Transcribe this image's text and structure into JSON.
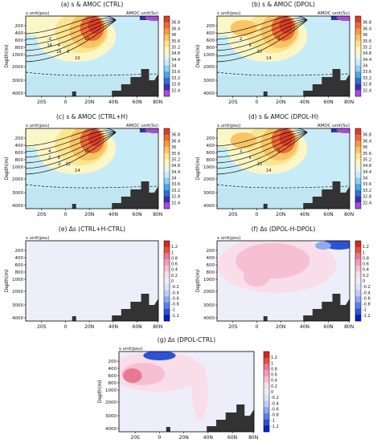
{
  "colors": {
    "salinity_scale": [
      "#a24fd6",
      "#3b2fb3",
      "#2f6fd0",
      "#4aa8e6",
      "#8fd0f0",
      "#c7ecf7",
      "#eef7e5",
      "#fbf6c6",
      "#fde58f",
      "#fbc464",
      "#f59a43",
      "#ed6a33",
      "#dc3c26"
    ],
    "anomaly_scale": [
      "#0c1cbf",
      "#2c52d6",
      "#5a82e6",
      "#8eaaf0",
      "#bfcdf6",
      "#dde3f8",
      "#eeeefa",
      "#f9dde8",
      "#f6bfd2",
      "#f19db8",
      "#ea7893",
      "#e2533b",
      "#d12a1c"
    ],
    "land": "#333333",
    "contour": "#111111"
  },
  "chart_data": [
    {
      "type": "contour",
      "panel_title": "(a) s & AMOC (CTRL)",
      "left_label": "s unit(psu)",
      "right_label": "AMOC unit(Sv)",
      "ylabel": "Depth(m)",
      "x_ticks": [
        "20S",
        "0",
        "20N",
        "40N",
        "60N",
        "80N"
      ],
      "y_ticks": [
        "200",
        "400",
        "600",
        "800",
        "1000",
        "2000",
        "3000",
        "4000"
      ],
      "colorbar_ticks": [
        "36.8",
        "36.4",
        "36",
        "35.6",
        "35.2",
        "34.8",
        "34.4",
        "34",
        "33.6",
        "33.2",
        "32.8",
        "32.4"
      ],
      "contour_labels": [
        "-2",
        "4",
        "8",
        "10",
        "12",
        "14",
        "16"
      ]
    },
    {
      "type": "contour",
      "panel_title": "(b) s & AMOC (DPOL)",
      "left_label": "s unit(psu)",
      "right_label": "AMOC unit(Sv)",
      "ylabel": "Depth(m)",
      "x_ticks": [
        "20S",
        "0",
        "20N",
        "40N",
        "60N",
        "80N"
      ],
      "y_ticks": [
        "200",
        "400",
        "600",
        "800",
        "1000",
        "2000",
        "3000",
        "4000"
      ],
      "colorbar_ticks": [
        "36.8",
        "36.4",
        "36",
        "35.6",
        "35.2",
        "34.8",
        "34.4",
        "34",
        "33.6",
        "33.2",
        "32.8",
        "32.4"
      ],
      "contour_labels": [
        "2",
        "6",
        "10",
        "14",
        "-2"
      ]
    },
    {
      "type": "contour",
      "panel_title": "(c) s & AMOC (CTRL+H)",
      "left_label": "s unit(psu)",
      "right_label": "AMOC unit(Sv)",
      "ylabel": "Depth(m)",
      "x_ticks": [
        "20S",
        "0",
        "20N",
        "40N",
        "60N",
        "80N"
      ],
      "y_ticks": [
        "200",
        "400",
        "600",
        "800",
        "1000",
        "2000",
        "3000",
        "4000"
      ],
      "colorbar_ticks": [
        "36.8",
        "36.4",
        "36",
        "35.6",
        "35.2",
        "34.8",
        "34.4",
        "34",
        "33.6",
        "33.2",
        "32.8",
        "32.4"
      ],
      "contour_labels": [
        "4",
        "8",
        "12",
        "14",
        "16",
        "2",
        "-2"
      ]
    },
    {
      "type": "contour",
      "panel_title": "(d) s & AMOC (DPOL-H)",
      "left_label": "s unit(psu)",
      "right_label": "AMOC unit(Sv)",
      "ylabel": "Depth(m)",
      "x_ticks": [
        "20S",
        "0",
        "20N",
        "40N",
        "60N",
        "80N"
      ],
      "y_ticks": [
        "200",
        "400",
        "600",
        "800",
        "1000",
        "2000",
        "3000",
        "4000"
      ],
      "colorbar_ticks": [
        "36.8",
        "36.4",
        "36",
        "35.6",
        "35.2",
        "34.8",
        "34.4",
        "34",
        "33.6",
        "33.2",
        "32.8",
        "32.4"
      ],
      "contour_labels": [
        "2",
        "6",
        "10",
        "14",
        "-2"
      ]
    },
    {
      "type": "contour",
      "panel_title": "(e) Δs (CTRL+H-CTRL)",
      "left_label": "s unit(psu)",
      "right_label": "",
      "ylabel": "Depth(m)",
      "x_ticks": [
        "20S",
        "0",
        "20N",
        "40N",
        "60N",
        "80N"
      ],
      "y_ticks": [
        "200",
        "400",
        "600",
        "800",
        "1000",
        "2000",
        "3000",
        "4000"
      ],
      "colorbar_ticks": [
        "1.2",
        "1",
        "0.8",
        "0.6",
        "0.4",
        "0.2",
        "0",
        "-0.2",
        "-0.4",
        "-0.6",
        "-0.8",
        "-1",
        "-1.2"
      ],
      "contour_labels": []
    },
    {
      "type": "contour",
      "panel_title": "(f) Δs (DPOL-H-DPOL)",
      "left_label": "s unit(psu)",
      "right_label": "",
      "ylabel": "Depth(m)",
      "x_ticks": [
        "20S",
        "0",
        "20N",
        "40N",
        "60N",
        "80N"
      ],
      "y_ticks": [
        "200",
        "400",
        "600",
        "800",
        "1000",
        "2000",
        "3000",
        "4000"
      ],
      "colorbar_ticks": [
        "1.2",
        "1",
        "0.8",
        "0.6",
        "0.4",
        "0.2",
        "0",
        "-0.2",
        "-0.4",
        "-0.6",
        "-0.8",
        "-1",
        "-1.2"
      ],
      "contour_labels": []
    },
    {
      "type": "contour",
      "panel_title": "(g) Δs (DPOL-CTRL)",
      "left_label": "s unit(psu)",
      "right_label": "",
      "ylabel": "Depth(m)",
      "x_ticks": [
        "20S",
        "0",
        "20N",
        "40N",
        "60N",
        "80N"
      ],
      "y_ticks": [
        "200",
        "400",
        "600",
        "800",
        "1000",
        "2000",
        "3000",
        "4000"
      ],
      "colorbar_ticks": [
        "1.2",
        "1",
        "0.8",
        "0.6",
        "0.4",
        "0.2",
        "0",
        "-0.2",
        "-0.4",
        "-0.6",
        "-0.8",
        "-1",
        "-1.2"
      ],
      "contour_labels": []
    }
  ]
}
